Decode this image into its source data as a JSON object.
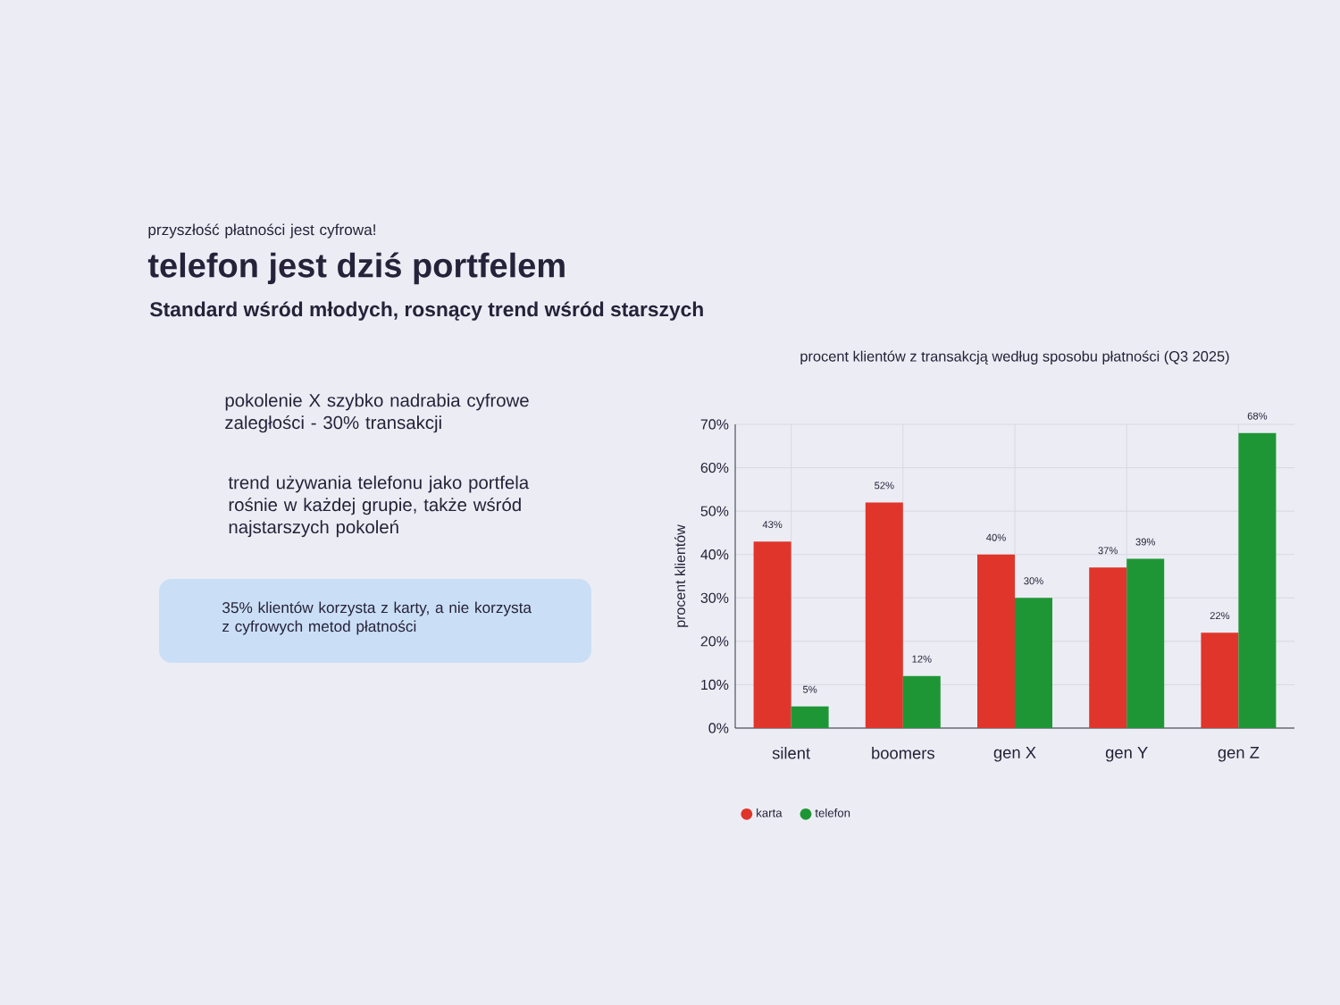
{
  "chart_data": [
    {
      "type": "other",
      "title": "telefon jest dziś portfelem",
      "subtitle": "Standard wśród młodych, rosnący trend wśród starszych",
      "annotations": [
        "przyszłość płatności jest cyfrowa!",
        "pokolenie X szybko nadrabia cyfrowe zaległości - 30% transakcji",
        "trend używania telefonu jako portfela rośnie w każdej grupie, także wśród najstarszych pokoleń",
        "35% klientów korzysta z karty, a nie korzysta z cyfrowych metod płatności"
      ]
    },
    {
      "type": "bar",
      "title": "procent klientów z transakcją według sposobu płatności (Q3 2025)",
      "ylabel": "procent klientów",
      "categories": [
        "silent",
        "boomers",
        "gen X",
        "gen Y",
        "gen Z"
      ],
      "series": [
        {
          "name": "karta",
          "color": "#e0352b",
          "values": [
            43,
            52,
            40,
            37,
            22
          ],
          "value_labels": [
            "43%",
            "52%",
            "40%",
            "37%",
            "22%"
          ]
        },
        {
          "name": "telefon",
          "color": "#1f9636",
          "values": [
            5,
            12,
            30,
            39,
            68
          ],
          "value_labels": [
            "5%",
            "12%",
            "30%",
            "39%",
            "68%"
          ]
        }
      ],
      "ylim": [
        0,
        70
      ],
      "yticks": [
        {
          "value": 0,
          "label": "0%"
        },
        {
          "value": 10,
          "label": "10%"
        },
        {
          "value": 20,
          "label": "20%"
        },
        {
          "value": 30,
          "label": "30%"
        },
        {
          "value": 40,
          "label": "40%"
        },
        {
          "value": 50,
          "label": "50%"
        },
        {
          "value": 60,
          "label": "60%"
        },
        {
          "value": 70,
          "label": "70%"
        }
      ],
      "grid": true,
      "legend": "bottom left"
    }
  ]
}
